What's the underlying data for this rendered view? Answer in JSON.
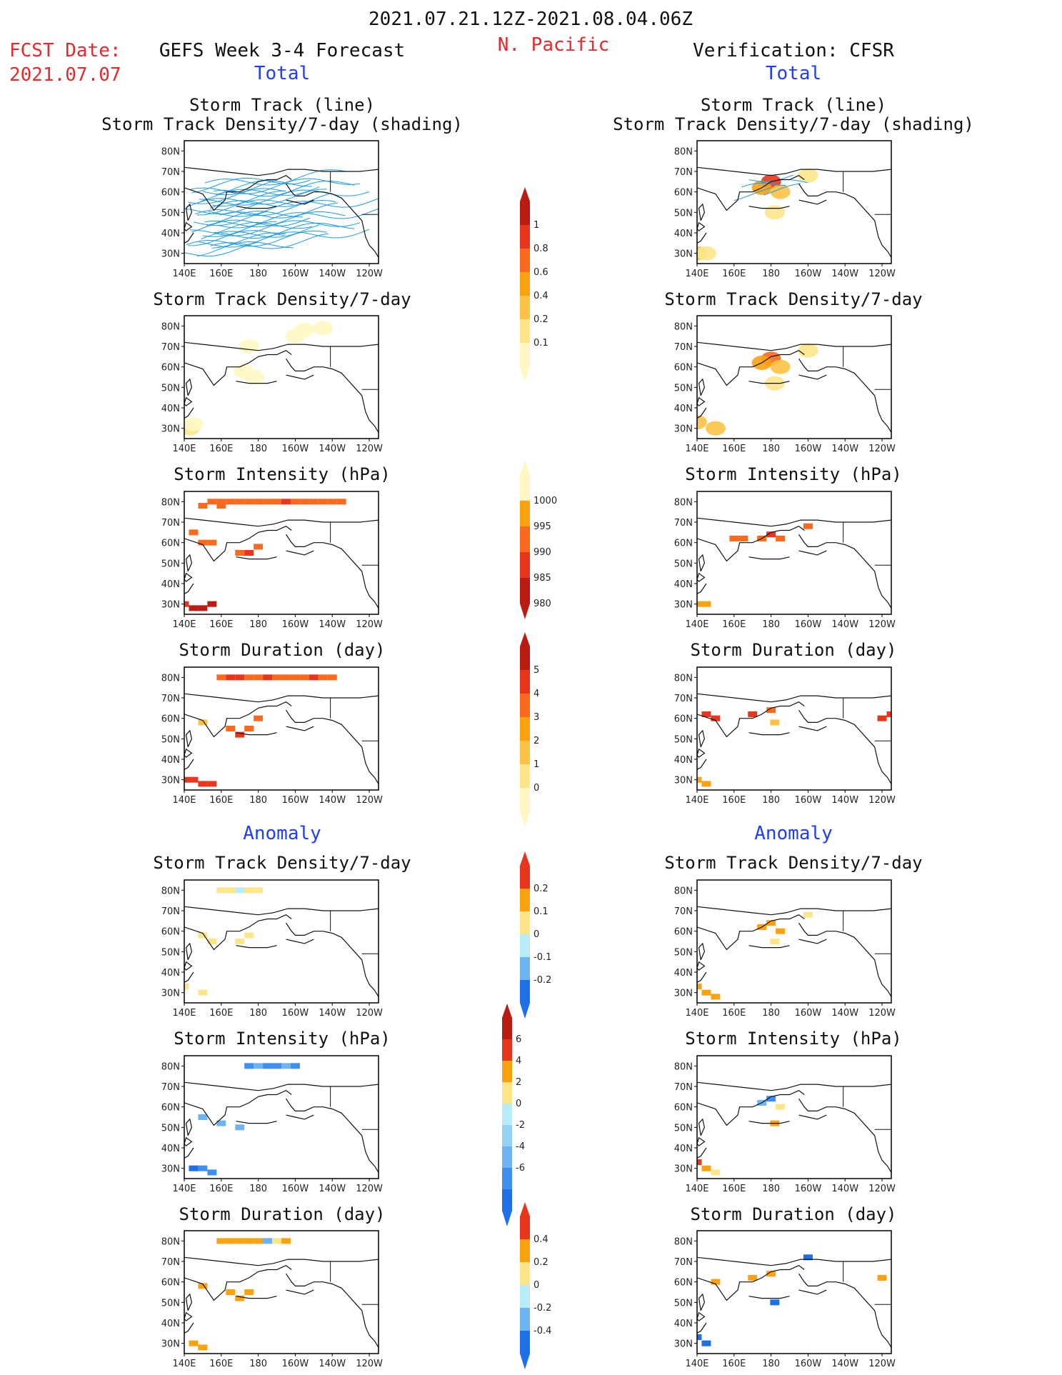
{
  "header": {
    "date_range": "2021.07.21.12Z-2021.08.04.06Z",
    "fcst_label": "FCST Date:",
    "fcst_date": "2021.07.07",
    "left_title": "GEFS Week 3-4 Forecast",
    "center_title": "N. Pacific",
    "right_title": "Verification: CFSR",
    "left_sub": "Total",
    "right_sub": "Total",
    "anomaly_left": "Anomaly",
    "anomaly_right": "Anomaly"
  },
  "panel_titles": {
    "track_line": "Storm Track (line)",
    "track_shading": "Storm Track Density/7-day (shading)",
    "density": "Storm Track Density/7-day",
    "intensity": "Storm Intensity (hPa)",
    "duration": "Storm Duration (day)"
  },
  "axes": {
    "y_labels": [
      "80N",
      "70N",
      "60N",
      "50N",
      "40N",
      "30N"
    ],
    "x_labels": [
      "140E",
      "160E",
      "180",
      "160W",
      "140W",
      "120W"
    ]
  },
  "colorbars": {
    "density": {
      "labels": [
        "1",
        "0.8",
        "0.6",
        "0.4",
        "0.2",
        "0.1"
      ],
      "colors": [
        "#b91c12",
        "#e8361c",
        "#f96a1e",
        "#fca211",
        "#fcc245",
        "#fde58a",
        "#fff8c4"
      ]
    },
    "intensity": {
      "labels": [
        "1000",
        "995",
        "990",
        "985",
        "980"
      ],
      "colors": [
        "#fff8c4",
        "#fca211",
        "#f96a1e",
        "#e8361c",
        "#b91c12"
      ]
    },
    "duration": {
      "labels": [
        "5",
        "4",
        "3",
        "2",
        "1",
        "0"
      ],
      "colors": [
        "#b91c12",
        "#e8361c",
        "#f96a1e",
        "#fca211",
        "#fcc245",
        "#fde58a",
        "#fff8c4"
      ]
    },
    "anom_density": {
      "labels": [
        "0.2",
        "0.1",
        "0",
        "-0.1",
        "-0.2"
      ],
      "colors": [
        "#e8361c",
        "#fca211",
        "#fde58a",
        "#b7ecf8",
        "#6db4f2",
        "#1f6fe6"
      ]
    },
    "anom_intensity": {
      "labels": [
        "6",
        "4",
        "2",
        "0",
        "-2",
        "-4",
        "-6"
      ],
      "colors": [
        "#b91c12",
        "#e8361c",
        "#fca211",
        "#fde58a",
        "#b7ecf8",
        "#94d2f6",
        "#6db4f2",
        "#3d8ff0",
        "#1f6fe6"
      ]
    },
    "anom_duration": {
      "labels": [
        "0.4",
        "0.2",
        "0",
        "-0.2",
        "-0.4"
      ],
      "colors": [
        "#e8361c",
        "#fca211",
        "#fde58a",
        "#b7ecf8",
        "#6db4f2",
        "#1f6fe6"
      ]
    }
  },
  "chart_data": [
    {
      "type": "heatmap",
      "title": "Storm Track (line) / Storm Track Density/7-day (shading)",
      "source": "GEFS Week 3-4 Forecast",
      "cells": []
    },
    {
      "type": "heatmap",
      "title": "Storm Track Density/7-day",
      "source": "GEFS Week 3-4 Forecast",
      "cells": [
        [
          200,
          75,
          0.1
        ],
        [
          205,
          78,
          0.1
        ],
        [
          215,
          79,
          0.1
        ],
        [
          175,
          70,
          0.1
        ],
        [
          172,
          58,
          0.1
        ],
        [
          178,
          55,
          0.1
        ],
        [
          143,
          30,
          0.2
        ],
        [
          145,
          32,
          0.1
        ]
      ]
    },
    {
      "type": "heatmap",
      "title": "Storm Intensity (hPa)",
      "source": "GEFS Week 3-4 Forecast",
      "cells": [
        [
          155,
          80,
          995
        ],
        [
          160,
          80,
          995
        ],
        [
          165,
          80,
          995
        ],
        [
          170,
          80,
          995
        ],
        [
          175,
          80,
          995
        ],
        [
          180,
          80,
          995
        ],
        [
          185,
          80,
          995
        ],
        [
          190,
          80,
          995
        ],
        [
          195,
          80,
          990
        ],
        [
          200,
          80,
          995
        ],
        [
          205,
          80,
          995
        ],
        [
          210,
          80,
          995
        ],
        [
          215,
          80,
          995
        ],
        [
          220,
          80,
          995
        ],
        [
          225,
          80,
          995
        ],
        [
          160,
          78,
          995
        ],
        [
          150,
          78,
          995
        ],
        [
          145,
          65,
          995
        ],
        [
          150,
          60,
          995
        ],
        [
          155,
          60,
          995
        ],
        [
          170,
          55,
          995
        ],
        [
          175,
          55,
          990
        ],
        [
          180,
          58,
          995
        ],
        [
          140,
          30,
          990
        ],
        [
          145,
          28,
          985
        ],
        [
          150,
          28,
          985
        ],
        [
          155,
          30,
          985
        ]
      ]
    },
    {
      "type": "heatmap",
      "title": "Storm Duration (day)",
      "source": "GEFS Week 3-4 Forecast",
      "cells": [
        [
          160,
          80,
          4
        ],
        [
          165,
          80,
          5
        ],
        [
          170,
          80,
          5
        ],
        [
          175,
          80,
          4
        ],
        [
          180,
          80,
          4
        ],
        [
          185,
          80,
          5
        ],
        [
          190,
          80,
          4
        ],
        [
          195,
          80,
          4
        ],
        [
          200,
          80,
          4
        ],
        [
          205,
          80,
          4
        ],
        [
          210,
          80,
          5
        ],
        [
          215,
          80,
          4
        ],
        [
          220,
          80,
          4
        ],
        [
          150,
          58,
          2
        ],
        [
          165,
          55,
          4
        ],
        [
          170,
          52,
          5
        ],
        [
          175,
          55,
          4
        ],
        [
          180,
          60,
          4
        ],
        [
          140,
          30,
          5
        ],
        [
          145,
          30,
          5
        ],
        [
          150,
          28,
          5
        ],
        [
          155,
          28,
          5
        ]
      ]
    },
    {
      "type": "heatmap",
      "title": "Storm Track Density/7-day (Anomaly)",
      "source": "GEFS Week 3-4 Forecast",
      "cells": [
        [
          160,
          80,
          0.05
        ],
        [
          165,
          80,
          0.05
        ],
        [
          170,
          80,
          -0.05
        ],
        [
          175,
          80,
          0.05
        ],
        [
          180,
          80,
          0.05
        ],
        [
          150,
          58,
          0.1
        ],
        [
          155,
          55,
          0.05
        ],
        [
          170,
          55,
          0.05
        ],
        [
          175,
          58,
          0.05
        ],
        [
          140,
          33,
          0.05
        ],
        [
          150,
          30,
          0.1
        ]
      ]
    },
    {
      "type": "heatmap",
      "title": "Storm Intensity (hPa) (Anomaly)",
      "source": "GEFS Week 3-4 Forecast",
      "cells": [
        [
          175,
          80,
          -4
        ],
        [
          180,
          80,
          -3
        ],
        [
          185,
          80,
          -5
        ],
        [
          190,
          80,
          -4
        ],
        [
          195,
          80,
          -3
        ],
        [
          200,
          80,
          -5
        ],
        [
          145,
          30,
          -6
        ],
        [
          150,
          30,
          -5
        ],
        [
          155,
          28,
          -4
        ],
        [
          150,
          55,
          -3
        ],
        [
          160,
          52,
          -3
        ],
        [
          170,
          50,
          -2
        ]
      ]
    },
    {
      "type": "heatmap",
      "title": "Storm Duration (day) (Anomaly)",
      "source": "GEFS Week 3-4 Forecast",
      "cells": [
        [
          160,
          80,
          0.4
        ],
        [
          165,
          80,
          0.4
        ],
        [
          170,
          80,
          0.4
        ],
        [
          175,
          80,
          0.4
        ],
        [
          180,
          80,
          0.3
        ],
        [
          185,
          80,
          -0.3
        ],
        [
          190,
          80,
          0.2
        ],
        [
          195,
          80,
          0.4
        ],
        [
          150,
          58,
          0.3
        ],
        [
          165,
          55,
          0.4
        ],
        [
          170,
          52,
          0.4
        ],
        [
          175,
          55,
          0.3
        ],
        [
          145,
          30,
          0.4
        ],
        [
          150,
          28,
          0.4
        ]
      ]
    },
    {
      "type": "heatmap",
      "title": "Storm Track (line) / Storm Track Density/7-day (shading)",
      "source": "Verification: CFSR",
      "cells": [
        [
          180,
          65,
          0.9
        ],
        [
          175,
          62,
          0.6
        ],
        [
          185,
          60,
          0.4
        ],
        [
          182,
          50,
          0.2
        ],
        [
          140,
          30,
          0.3
        ],
        [
          145,
          30,
          0.2
        ],
        [
          200,
          68,
          0.2
        ]
      ]
    },
    {
      "type": "heatmap",
      "title": "Storm Track Density/7-day",
      "source": "Verification: CFSR",
      "cells": [
        [
          180,
          64,
          0.8
        ],
        [
          175,
          62,
          0.5
        ],
        [
          185,
          60,
          0.4
        ],
        [
          182,
          52,
          0.2
        ],
        [
          140,
          33,
          0.3
        ],
        [
          150,
          30,
          0.4
        ],
        [
          200,
          68,
          0.2
        ]
      ]
    },
    {
      "type": "heatmap",
      "title": "Storm Intensity (hPa)",
      "source": "Verification: CFSR",
      "cells": [
        [
          160,
          62,
          995
        ],
        [
          165,
          62,
          995
        ],
        [
          175,
          62,
          995
        ],
        [
          180,
          64,
          990
        ],
        [
          185,
          62,
          995
        ],
        [
          200,
          68,
          995
        ],
        [
          140,
          30,
          1000
        ],
        [
          145,
          30,
          1000
        ]
      ]
    },
    {
      "type": "heatmap",
      "title": "Storm Duration (day)",
      "source": "Verification: CFSR",
      "cells": [
        [
          145,
          62,
          5
        ],
        [
          150,
          60,
          5
        ],
        [
          170,
          62,
          5
        ],
        [
          180,
          64,
          4
        ],
        [
          182,
          58,
          2
        ],
        [
          240,
          60,
          5
        ],
        [
          245,
          62,
          5
        ],
        [
          140,
          30,
          3
        ],
        [
          145,
          28,
          3
        ]
      ]
    },
    {
      "type": "heatmap",
      "title": "Storm Track Density/7-day (Anomaly)",
      "source": "Verification: CFSR",
      "cells": [
        [
          175,
          62,
          0.2
        ],
        [
          180,
          64,
          0.2
        ],
        [
          185,
          60,
          0.15
        ],
        [
          182,
          55,
          0.1
        ],
        [
          140,
          33,
          0.2
        ],
        [
          145,
          30,
          0.2
        ],
        [
          150,
          28,
          0.2
        ],
        [
          200,
          68,
          0.1
        ]
      ]
    },
    {
      "type": "heatmap",
      "title": "Storm Intensity (hPa) (Anomaly)",
      "source": "Verification: CFSR",
      "cells": [
        [
          175,
          62,
          -3
        ],
        [
          180,
          64,
          -4
        ],
        [
          185,
          60,
          2
        ],
        [
          182,
          52,
          4
        ],
        [
          140,
          33,
          6
        ],
        [
          145,
          30,
          4
        ],
        [
          150,
          28,
          2
        ]
      ]
    },
    {
      "type": "heatmap",
      "title": "Storm Duration (day) (Anomaly)",
      "source": "Verification: CFSR",
      "cells": [
        [
          150,
          60,
          0.4
        ],
        [
          170,
          62,
          0.4
        ],
        [
          180,
          64,
          0.3
        ],
        [
          182,
          50,
          -0.4
        ],
        [
          200,
          72,
          -0.4
        ],
        [
          140,
          33,
          -0.4
        ],
        [
          145,
          30,
          -0.4
        ],
        [
          240,
          62,
          0.4
        ]
      ]
    }
  ]
}
